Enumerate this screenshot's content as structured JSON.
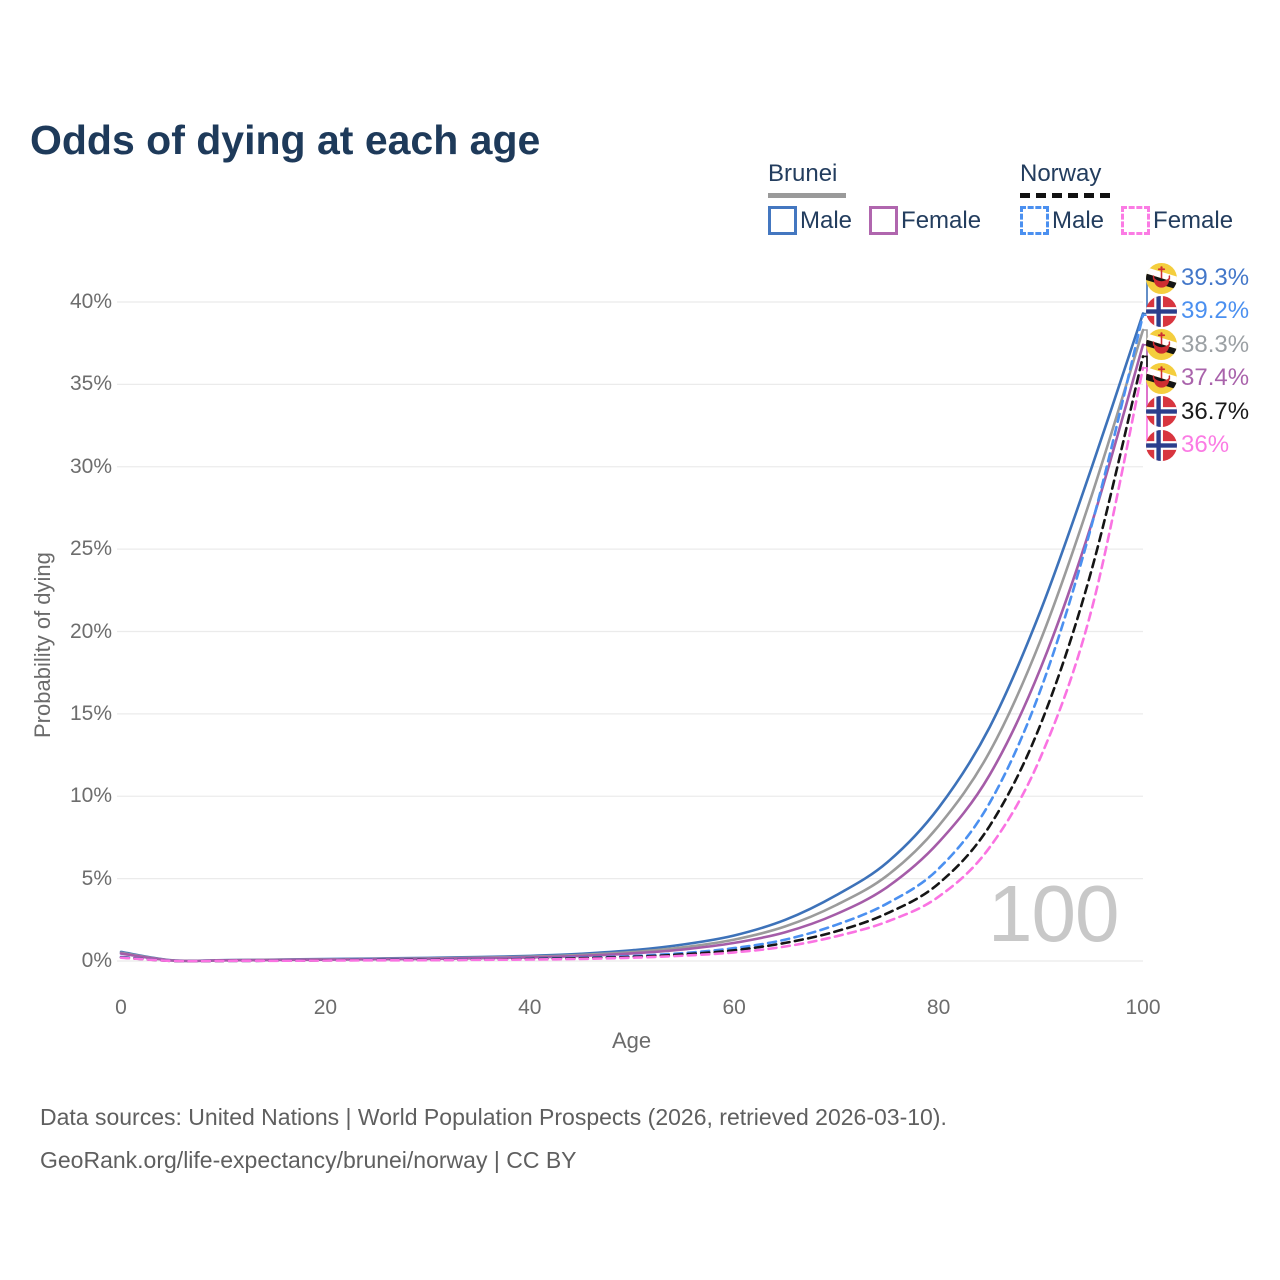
{
  "title": "Odds of dying at each age",
  "watermark_age": "100",
  "legend": {
    "groups": [
      {
        "country": "Brunei",
        "line_style": "solid",
        "underline_color": "#9a9a9a",
        "items": [
          {
            "label": "Male",
            "color": "#4477c0",
            "dashed": false
          },
          {
            "label": "Female",
            "color": "#b066ae",
            "dashed": false
          }
        ]
      },
      {
        "country": "Norway",
        "line_style": "dashed",
        "underline_color": "#111111",
        "items": [
          {
            "label": "Male",
            "color": "#4b90f0",
            "dashed": true
          },
          {
            "label": "Female",
            "color": "#fb7be4",
            "dashed": true
          }
        ]
      }
    ]
  },
  "axes": {
    "x": {
      "label": "Age",
      "ticks": [
        0,
        20,
        40,
        60,
        80,
        100
      ],
      "range": [
        0,
        100
      ]
    },
    "y": {
      "label": "Probability of dying",
      "ticks": [
        "0%",
        "5%",
        "10%",
        "15%",
        "20%",
        "25%",
        "30%",
        "35%",
        "40%"
      ],
      "range": [
        0,
        40
      ],
      "grid": true
    }
  },
  "chart_data": {
    "type": "line",
    "title": "Odds of dying at each age",
    "xlabel": "Age",
    "ylabel": "Probability of dying",
    "x_range": [
      0,
      100
    ],
    "y_range_percent": [
      0,
      40
    ],
    "grid": "horizontal",
    "x_ages": [
      0,
      5,
      10,
      15,
      20,
      25,
      30,
      35,
      40,
      45,
      50,
      55,
      60,
      65,
      70,
      75,
      80,
      85,
      90,
      95,
      100
    ],
    "series": [
      {
        "name": "Brunei Male",
        "country": "Brunei",
        "sex": "Male",
        "color": "#3d72b9",
        "label_color": "#4377c9",
        "dashed": false,
        "flag": "brunei-flag-icon",
        "end_label": "39.3%",
        "values_percent": [
          0.55,
          0.04,
          0.05,
          0.08,
          0.12,
          0.15,
          0.19,
          0.24,
          0.31,
          0.44,
          0.65,
          1.0,
          1.55,
          2.5,
          4.0,
          6.0,
          9.3,
          14.2,
          21.3,
          30.0,
          39.3
        ]
      },
      {
        "name": "Norway Male",
        "country": "Norway",
        "sex": "Male",
        "color": "#4b90f0",
        "label_color": "#4b90f0",
        "dashed": true,
        "flag": "norway-flag-icon",
        "end_label": "39.2%",
        "values_percent": [
          0.25,
          0.01,
          0.01,
          0.02,
          0.05,
          0.07,
          0.08,
          0.1,
          0.14,
          0.2,
          0.3,
          0.48,
          0.78,
          1.3,
          2.2,
          3.5,
          5.6,
          9.6,
          16.5,
          26.5,
          39.2
        ]
      },
      {
        "name": "Brunei Both sexes",
        "country": "Brunei",
        "sex": "Both",
        "color": "#9b9b9b",
        "label_color": "#9ba0a4",
        "dashed": false,
        "flag": "brunei-flag-icon",
        "end_label": "38.3%",
        "values_percent": [
          0.5,
          0.035,
          0.045,
          0.07,
          0.1,
          0.13,
          0.16,
          0.2,
          0.26,
          0.37,
          0.54,
          0.83,
          1.3,
          2.1,
          3.4,
          5.2,
          8.2,
          12.7,
          19.5,
          28.3,
          38.3
        ]
      },
      {
        "name": "Brunei Female",
        "country": "Brunei",
        "sex": "Female",
        "color": "#a55ca8",
        "label_color": "#a963ab",
        "dashed": false,
        "flag": "brunei-flag-icon",
        "end_label": "37.4%",
        "values_percent": [
          0.45,
          0.03,
          0.04,
          0.06,
          0.08,
          0.11,
          0.13,
          0.17,
          0.22,
          0.31,
          0.46,
          0.7,
          1.1,
          1.75,
          2.85,
          4.5,
          7.2,
          11.3,
          17.8,
          26.6,
          37.4
        ]
      },
      {
        "name": "Norway Both sexes",
        "country": "Norway",
        "sex": "Both",
        "color": "#151515",
        "label_color": "#1a1a1a",
        "dashed": true,
        "flag": "norway-flag-icon",
        "end_label": "36.7%",
        "values_percent": [
          0.22,
          0.009,
          0.009,
          0.018,
          0.04,
          0.055,
          0.065,
          0.085,
          0.12,
          0.17,
          0.25,
          0.4,
          0.65,
          1.1,
          1.8,
          2.9,
          4.7,
          8.2,
          14.4,
          23.8,
          36.7
        ]
      },
      {
        "name": "Norway Female",
        "country": "Norway",
        "sex": "Female",
        "color": "#fa73e2",
        "label_color": "#fb7be4",
        "dashed": true,
        "flag": "norway-flag-icon",
        "end_label": "36%",
        "values_percent": [
          0.2,
          0.008,
          0.008,
          0.015,
          0.03,
          0.04,
          0.05,
          0.07,
          0.09,
          0.13,
          0.2,
          0.32,
          0.52,
          0.88,
          1.5,
          2.4,
          3.9,
          6.9,
          12.4,
          21.4,
          36.0
        ]
      }
    ]
  },
  "footer": {
    "line1": "Data sources: United Nations | World Population Prospects (2026, retrieved 2026-03-10).",
    "line2": "GeoRank.org/life-expectancy/brunei/norway | CC BY"
  },
  "colors": {
    "title": "#1e3a5a",
    "grid": "#ebebeb",
    "tick_text": "#6d6d6d",
    "watermark": "#c8c8c8",
    "footer_text": "#5f5f5f"
  }
}
